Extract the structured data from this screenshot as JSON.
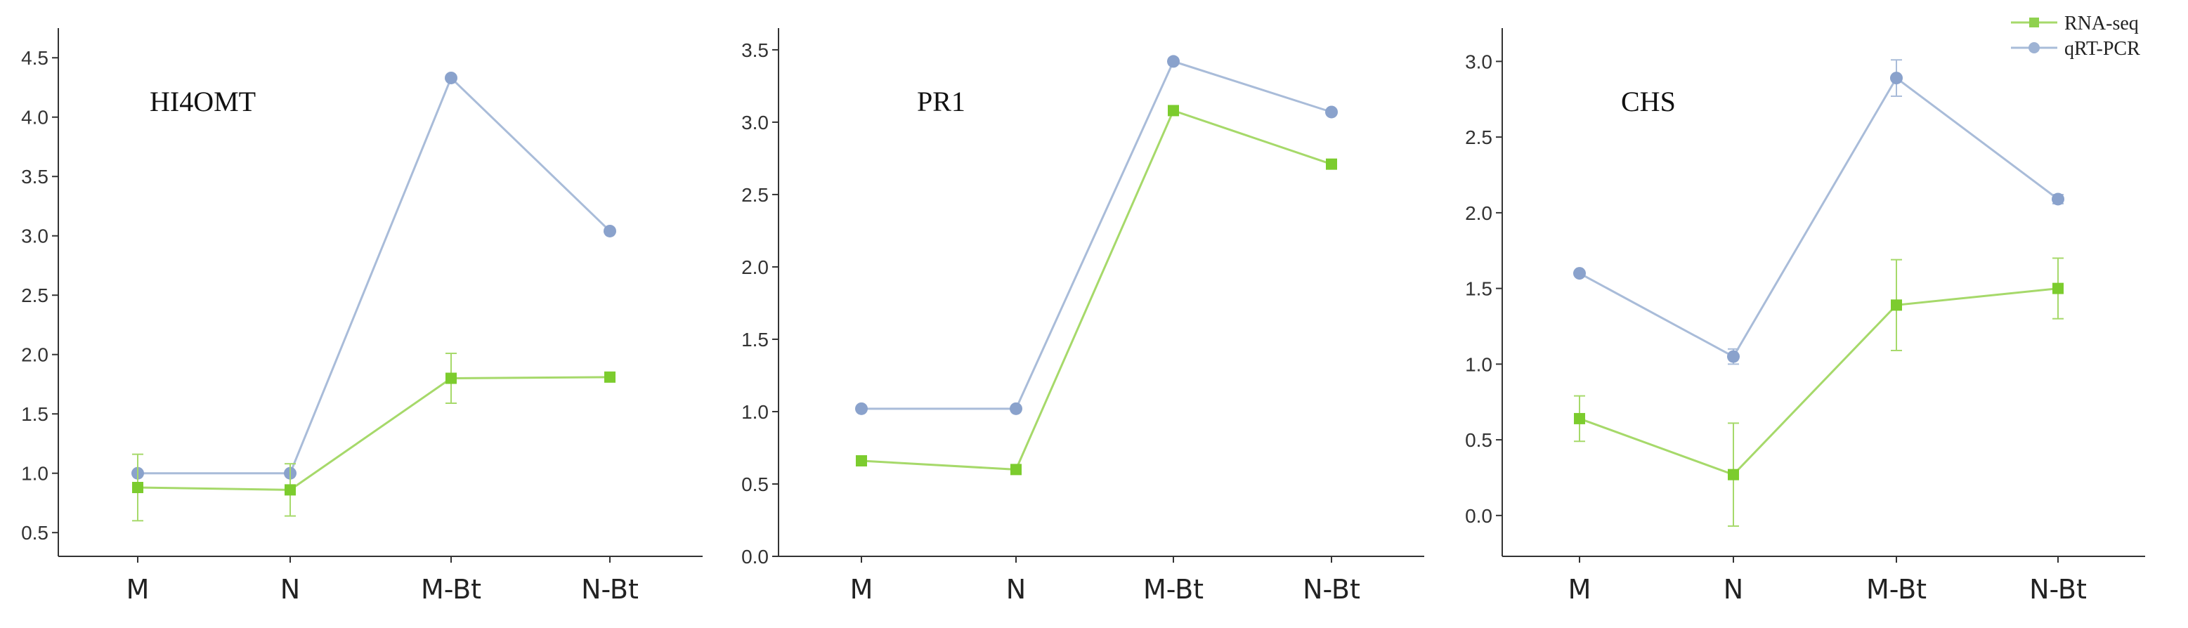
{
  "chart_data": [
    {
      "type": "line",
      "title": "HI4OMT",
      "categories": [
        "M",
        "N",
        "M-Bt",
        "N-Bt"
      ],
      "ylim": [
        0.3,
        4.75
      ],
      "yticks": [
        0.5,
        1.0,
        1.5,
        2.0,
        2.5,
        3.0,
        3.5,
        4.0,
        4.5
      ],
      "ytick_labels": [
        "0.5",
        "1.0",
        "1.5",
        "2.0",
        "2.5",
        "3.0",
        "3.5",
        "4.0",
        "4.5"
      ],
      "series": [
        {
          "name": "RNA-seq",
          "values": [
            0.88,
            0.86,
            1.8,
            1.81
          ],
          "errors": [
            0.28,
            0.22,
            0.21,
            0.0
          ]
        },
        {
          "name": "qRT-PCR",
          "values": [
            1.0,
            1.0,
            4.33,
            3.04
          ],
          "errors": [
            0,
            0,
            0,
            0
          ]
        }
      ]
    },
    {
      "type": "line",
      "title": "PR1",
      "categories": [
        "M",
        "N",
        "M-Bt",
        "N-Bt"
      ],
      "ylim": [
        0.0,
        3.65
      ],
      "yticks": [
        0.0,
        0.5,
        1.0,
        1.5,
        2.0,
        2.5,
        3.0,
        3.5
      ],
      "ytick_labels": [
        "0.0",
        "0.5",
        "1.0",
        "1.5",
        "2.0",
        "2.5",
        "3.0",
        "3.5"
      ],
      "series": [
        {
          "name": "RNA-seq",
          "values": [
            0.66,
            0.6,
            3.08,
            2.71
          ],
          "errors": [
            0,
            0,
            0,
            0
          ]
        },
        {
          "name": "qRT-PCR",
          "values": [
            1.02,
            1.02,
            3.42,
            3.07
          ],
          "errors": [
            0,
            0,
            0,
            0
          ]
        }
      ]
    },
    {
      "type": "line",
      "title": "CHS",
      "categories": [
        "M",
        "N",
        "M-Bt",
        "N-Bt"
      ],
      "ylim": [
        -0.27,
        3.22
      ],
      "yticks": [
        0.0,
        0.5,
        1.0,
        1.5,
        2.0,
        2.5,
        3.0
      ],
      "ytick_labels": [
        "0.0",
        "0.5",
        "1.0",
        "1.5",
        "2.0",
        "2.5",
        "3.0"
      ],
      "series": [
        {
          "name": "RNA-seq",
          "values": [
            0.64,
            0.27,
            1.39,
            1.5
          ],
          "errors": [
            0.15,
            0.34,
            0.3,
            0.2
          ]
        },
        {
          "name": "qRT-PCR",
          "values": [
            1.6,
            1.05,
            2.89,
            2.09
          ],
          "errors": [
            0,
            0.05,
            0.12,
            0.03
          ]
        }
      ]
    }
  ],
  "legend": {
    "placement": "top-right",
    "entries": [
      {
        "label": "RNA-seq",
        "color": "#8fd14f",
        "marker": "square"
      },
      {
        "label": "qRT-PCR",
        "color": "#9eb3d4",
        "marker": "circle"
      }
    ]
  },
  "colors": {
    "rna_line": "#a6d96a",
    "rna_marker": "#7ccc2e",
    "qpcr_line": "#a9bcd9",
    "qpcr_marker": "#8aa2cc",
    "axis": "#333333"
  }
}
